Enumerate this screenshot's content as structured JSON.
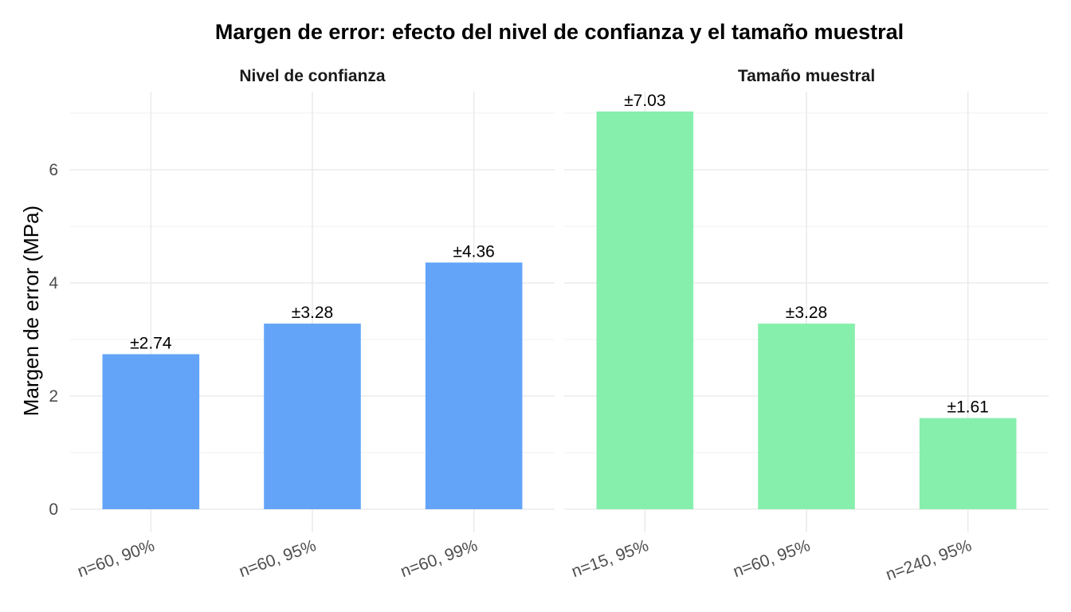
{
  "chart_data": {
    "type": "bar",
    "title": "Margen de error: efecto del nivel de confianza y el tamaño muestral",
    "ylabel": "Margen de error (MPa)",
    "xlabel": "",
    "ylim": [
      0,
      7.4
    ],
    "yticks": [
      0,
      2,
      4,
      6
    ],
    "grid": true,
    "legend": "none",
    "panels": [
      {
        "name": "Nivel de confianza",
        "color": "#63A4F8",
        "categories": [
          "n=60, 90%",
          "n=60, 95%",
          "n=60, 99%"
        ],
        "values": [
          2.74,
          3.28,
          4.36
        ],
        "labels": [
          "±2.74",
          "±3.28",
          "±4.36"
        ]
      },
      {
        "name": "Tamaño muestral",
        "color": "#86EFAC",
        "categories": [
          "n=15, 95%",
          "n=60, 95%",
          "n=240, 95%"
        ],
        "values": [
          7.03,
          3.28,
          1.61
        ],
        "labels": [
          "±7.03",
          "±3.28",
          "±1.61"
        ]
      }
    ]
  }
}
